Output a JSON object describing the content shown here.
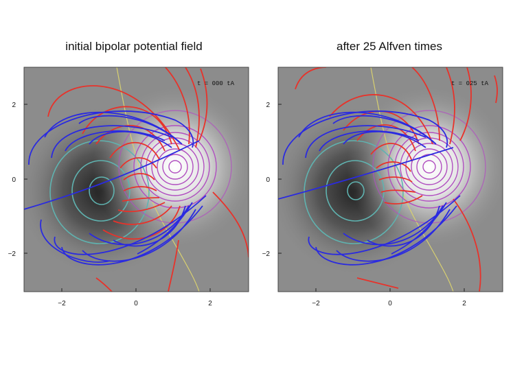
{
  "panels": [
    {
      "title": "initial bipolar potential field",
      "time_label": "t = 000 tA",
      "x_ticks": [
        "−2",
        "0",
        "2"
      ],
      "y_ticks": [
        "2",
        "0",
        "−2"
      ]
    },
    {
      "title": "after 25 Alfven times",
      "time_label": "t = 025 tA",
      "x_ticks": [
        "−2",
        "0",
        "2"
      ],
      "y_ticks": [
        "2",
        "0",
        "−2"
      ]
    }
  ],
  "colors": {
    "field_lines_red": "#e8322a",
    "field_lines_blue": "#2a2ae0",
    "negative_pole_contours": "#5fb3b0",
    "positive_pole_contours": "#b04fc0",
    "polarity_inversion_line": "#d8d070"
  }
}
